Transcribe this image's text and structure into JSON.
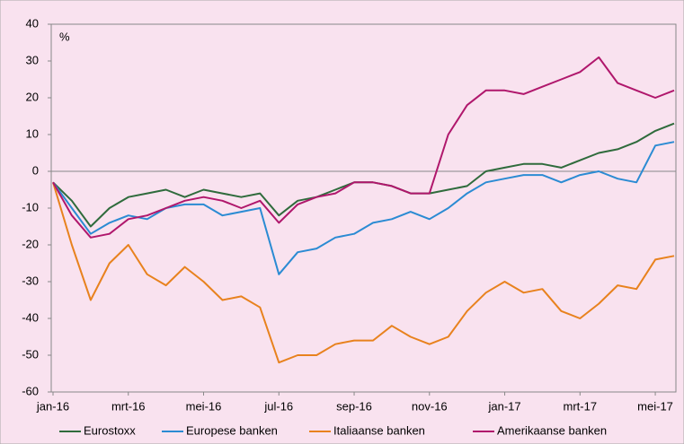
{
  "chart_data": {
    "type": "line",
    "unit_label": "%",
    "categories": [
      "jan-16",
      null,
      null,
      null,
      "mrt-16",
      null,
      null,
      null,
      "mei-16",
      null,
      null,
      null,
      "jul-16",
      null,
      null,
      null,
      "sep-16",
      null,
      null,
      null,
      "nov-16",
      null,
      null,
      null,
      "jan-17",
      null,
      null,
      null,
      "mrt-17",
      null,
      null,
      null,
      "mei-17",
      null
    ],
    "series": [
      {
        "name": "Eurostoxx",
        "color": "#2f6b3c",
        "values": [
          -3,
          -8,
          -15,
          -10,
          -7,
          -6,
          -5,
          -7,
          -5,
          -6,
          -7,
          -6,
          -12,
          -8,
          -7,
          -5,
          -3,
          -3,
          -4,
          -6,
          -6,
          -5,
          -4,
          0,
          1,
          2,
          2,
          1,
          3,
          5,
          6,
          8,
          11,
          13
        ]
      },
      {
        "name": "Europese banken",
        "color": "#2b8bd3",
        "values": [
          -3,
          -10,
          -17,
          -14,
          -12,
          -13,
          -10,
          -9,
          -9,
          -12,
          -11,
          -10,
          -28,
          -22,
          -21,
          -18,
          -17,
          -14,
          -13,
          -11,
          -13,
          -10,
          -6,
          -3,
          -2,
          -1,
          -1,
          -3,
          -1,
          0,
          -2,
          -3,
          7,
          8
        ]
      },
      {
        "name": "Italiaanse banken",
        "color": "#e8821e",
        "values": [
          -3,
          -20,
          -35,
          -25,
          -20,
          -28,
          -31,
          -26,
          -30,
          -35,
          -34,
          -37,
          -52,
          -50,
          -50,
          -47,
          -46,
          -46,
          -42,
          -45,
          -47,
          -45,
          -38,
          -33,
          -30,
          -33,
          -32,
          -38,
          -40,
          -36,
          -31,
          -32,
          -24,
          -23
        ]
      },
      {
        "name": "Amerikaanse banken",
        "color": "#b0176c",
        "values": [
          -3,
          -12,
          -18,
          -17,
          -13,
          -12,
          -10,
          -8,
          -7,
          -8,
          -10,
          -8,
          -14,
          -9,
          -7,
          -6,
          -3,
          -3,
          -4,
          -6,
          -6,
          10,
          18,
          22,
          22,
          21,
          23,
          25,
          27,
          31,
          24,
          22,
          20,
          22
        ]
      }
    ],
    "ylim": [
      -60,
      40
    ],
    "yticks": [
      -60,
      -50,
      -40,
      -30,
      -20,
      -10,
      0,
      10,
      20,
      30,
      40
    ]
  }
}
